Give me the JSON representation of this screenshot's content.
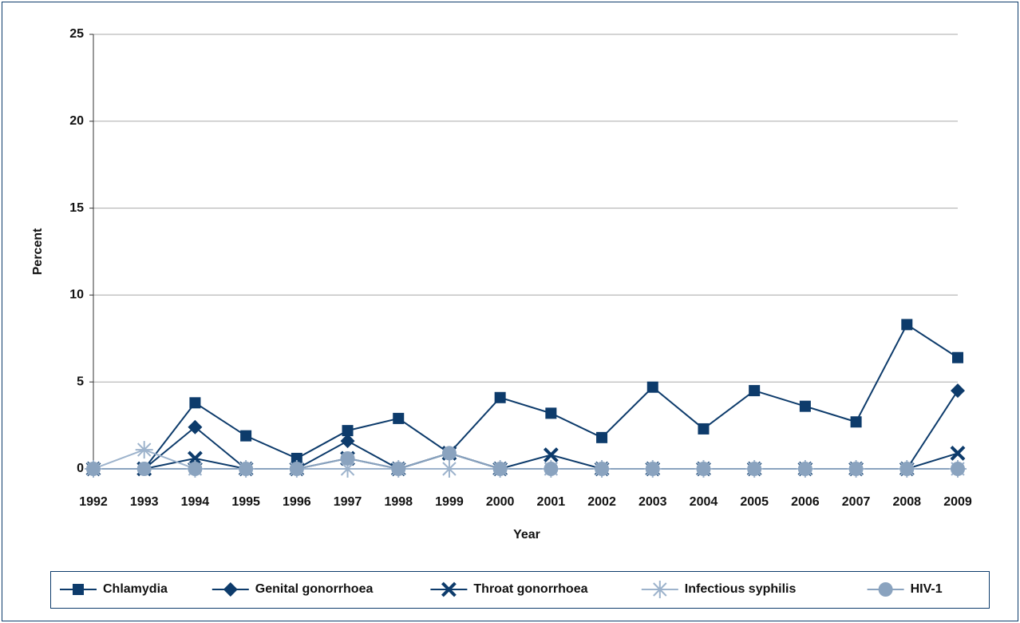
{
  "chart_data": {
    "type": "line",
    "xlabel": "Year",
    "ylabel": "Percent",
    "categories": [
      "1992",
      "1993",
      "1994",
      "1995",
      "1996",
      "1997",
      "1998",
      "1999",
      "2000",
      "2001",
      "2002",
      "2003",
      "2004",
      "2005",
      "2006",
      "2007",
      "2008",
      "2009"
    ],
    "ylim": [
      0,
      25
    ],
    "yticks": [
      0,
      5,
      10,
      15,
      20,
      25
    ],
    "grid": true,
    "legend": "bottom",
    "series": [
      {
        "name": "Chlamydia",
        "color": "#0d3b6b",
        "marker": "square",
        "values": [
          0,
          0,
          3.8,
          1.9,
          0.6,
          2.2,
          2.9,
          0.9,
          4.1,
          3.2,
          1.8,
          4.7,
          2.3,
          4.5,
          3.6,
          2.7,
          8.3,
          6.4
        ]
      },
      {
        "name": "Genital gonorrhoea",
        "color": "#0d3b6b",
        "marker": "diamond",
        "values": [
          0,
          0,
          2.4,
          0,
          0,
          1.6,
          0,
          0.9,
          0,
          0,
          0,
          0,
          0,
          0,
          0,
          0,
          0,
          4.5
        ]
      },
      {
        "name": "Throat gonorrhoea",
        "color": "#0d3b6b",
        "marker": "x",
        "values": [
          0,
          0,
          0.6,
          0,
          0,
          0.6,
          0,
          0.9,
          0,
          0.8,
          0,
          0,
          0,
          0,
          0,
          0,
          0,
          0.9
        ]
      },
      {
        "name": "Infectious syphilis",
        "color": "#9db3cc",
        "marker": "asterisk",
        "values": [
          0,
          1.1,
          0,
          0,
          0,
          0,
          0,
          0,
          0,
          0,
          0,
          0,
          0,
          0,
          0,
          0,
          0,
          0
        ]
      },
      {
        "name": "HIV-1",
        "color": "#8aa3bf",
        "marker": "circle",
        "values": [
          0,
          0,
          0,
          0,
          0,
          0.6,
          0,
          0.9,
          0,
          0,
          0,
          0,
          0,
          0,
          0,
          0,
          0,
          0
        ]
      }
    ]
  }
}
